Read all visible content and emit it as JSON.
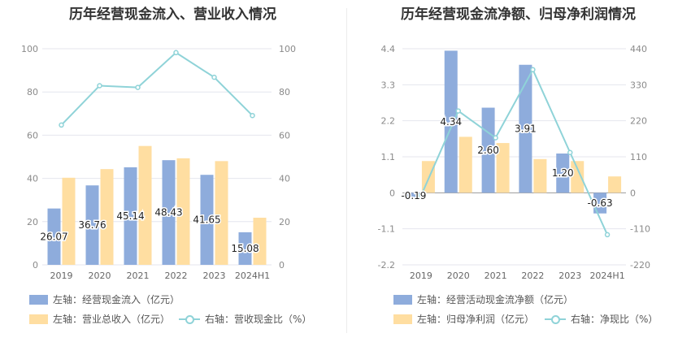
{
  "chart_data": [
    {
      "type": "bar",
      "title": "历年经营现金流入、营业收入情况",
      "categories": [
        "2019",
        "2020",
        "2021",
        "2022",
        "2023",
        "2024H1"
      ],
      "left_axis": {
        "ticks": [
          "0",
          "20",
          "40",
          "60",
          "80",
          "100"
        ],
        "range": [
          0,
          100
        ]
      },
      "right_axis": {
        "ticks": [
          "0",
          "20",
          "40",
          "60",
          "80",
          "100"
        ],
        "range": [
          0,
          100
        ]
      },
      "series": [
        {
          "name": "左轴：经营现金流入（亿元）",
          "type": "bar",
          "axis": "left",
          "color": "#8eacdc",
          "values": [
            26.07,
            36.76,
            45.14,
            48.43,
            41.65,
            15.08
          ],
          "labels": [
            "26.07",
            "36.76",
            "45.14",
            "48.43",
            "41.65",
            "15.08"
          ]
        },
        {
          "name": "左轴：营业总收入（亿元）",
          "type": "bar",
          "axis": "left",
          "color": "#ffdea1",
          "values": [
            40.3,
            44.3,
            55.0,
            49.3,
            48.0,
            21.8
          ]
        },
        {
          "name": "右轴：营收现金比（%）",
          "type": "line",
          "axis": "right",
          "color": "#8fd3d8",
          "values": [
            64.7,
            82.9,
            82.1,
            98.2,
            86.8,
            69.1
          ]
        }
      ]
    },
    {
      "type": "bar",
      "title": "历年经营现金流净额、归母净利润情况",
      "categories": [
        "2019",
        "2020",
        "2021",
        "2022",
        "2023",
        "2024H1"
      ],
      "left_axis": {
        "ticks": [
          "-2.2",
          "-1.1",
          "0",
          "1.1",
          "2.2",
          "3.3",
          "4.4"
        ],
        "range": [
          -2.2,
          4.4
        ]
      },
      "right_axis": {
        "ticks": [
          "-220",
          "-110",
          "0",
          "110",
          "220",
          "330",
          "440"
        ],
        "range": [
          -220,
          440
        ]
      },
      "series": [
        {
          "name": "左轴：经营活动现金流净额（亿元）",
          "type": "bar",
          "axis": "left",
          "color": "#8eacdc",
          "values": [
            -0.19,
            4.34,
            2.6,
            3.91,
            1.2,
            -0.63
          ],
          "labels": [
            "-0.19",
            "4.34",
            "2.60",
            "3.91",
            "1.20",
            "-0.63"
          ]
        },
        {
          "name": "左轴：归母净利润（亿元）",
          "type": "bar",
          "axis": "left",
          "color": "#ffdea1",
          "values": [
            0.97,
            1.71,
            1.52,
            1.03,
            0.97,
            0.5
          ]
        },
        {
          "name": "右轴：净现比（%）",
          "type": "line",
          "axis": "right",
          "color": "#8fd3d8",
          "values": [
            -9,
            250,
            168,
            376,
            123,
            -128
          ]
        }
      ]
    }
  ]
}
